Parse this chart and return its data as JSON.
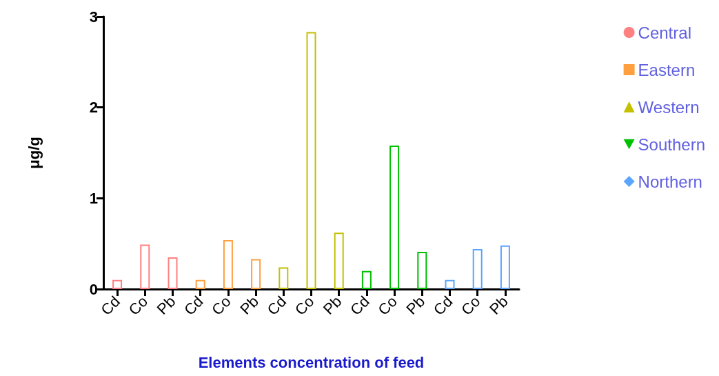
{
  "chart_data": {
    "type": "bar",
    "xlabel": "Elements concentration of feed",
    "ylabel": "μg/g",
    "categories": [
      "Cd",
      "Co",
      "Pb",
      "Cd",
      "Co",
      "Pb",
      "Cd",
      "Co",
      "Pb",
      "Cd",
      "Co",
      "Pb",
      "Cd",
      "Co",
      "Pb"
    ],
    "series": [
      {
        "name": "Central",
        "color": "#ff8080",
        "marker": "circle",
        "values": [
          0.1,
          0.49,
          0.35,
          null,
          null,
          null,
          null,
          null,
          null,
          null,
          null,
          null,
          null,
          null,
          null
        ]
      },
      {
        "name": "Eastern",
        "color": "#ffa040",
        "marker": "square",
        "values": [
          null,
          null,
          null,
          0.1,
          0.54,
          0.33,
          null,
          null,
          null,
          null,
          null,
          null,
          null,
          null,
          null
        ]
      },
      {
        "name": "Western",
        "color": "#c4c000",
        "marker": "triangle",
        "values": [
          null,
          null,
          null,
          null,
          null,
          null,
          0.24,
          2.83,
          0.62,
          null,
          null,
          null,
          null,
          null,
          null
        ]
      },
      {
        "name": "Southern",
        "color": "#00c000",
        "marker": "triangle-down",
        "values": [
          null,
          null,
          null,
          null,
          null,
          null,
          null,
          null,
          null,
          0.2,
          1.58,
          0.41,
          null,
          null,
          null
        ]
      },
      {
        "name": "Northern",
        "color": "#5aa5ff",
        "marker": "diamond",
        "values": [
          null,
          null,
          null,
          null,
          null,
          null,
          null,
          null,
          null,
          null,
          null,
          null,
          0.1,
          0.44,
          0.48
        ]
      }
    ],
    "ylim": [
      0,
      3
    ],
    "yticks": [
      0,
      1,
      2,
      3
    ],
    "grid": false,
    "legend": "right"
  }
}
